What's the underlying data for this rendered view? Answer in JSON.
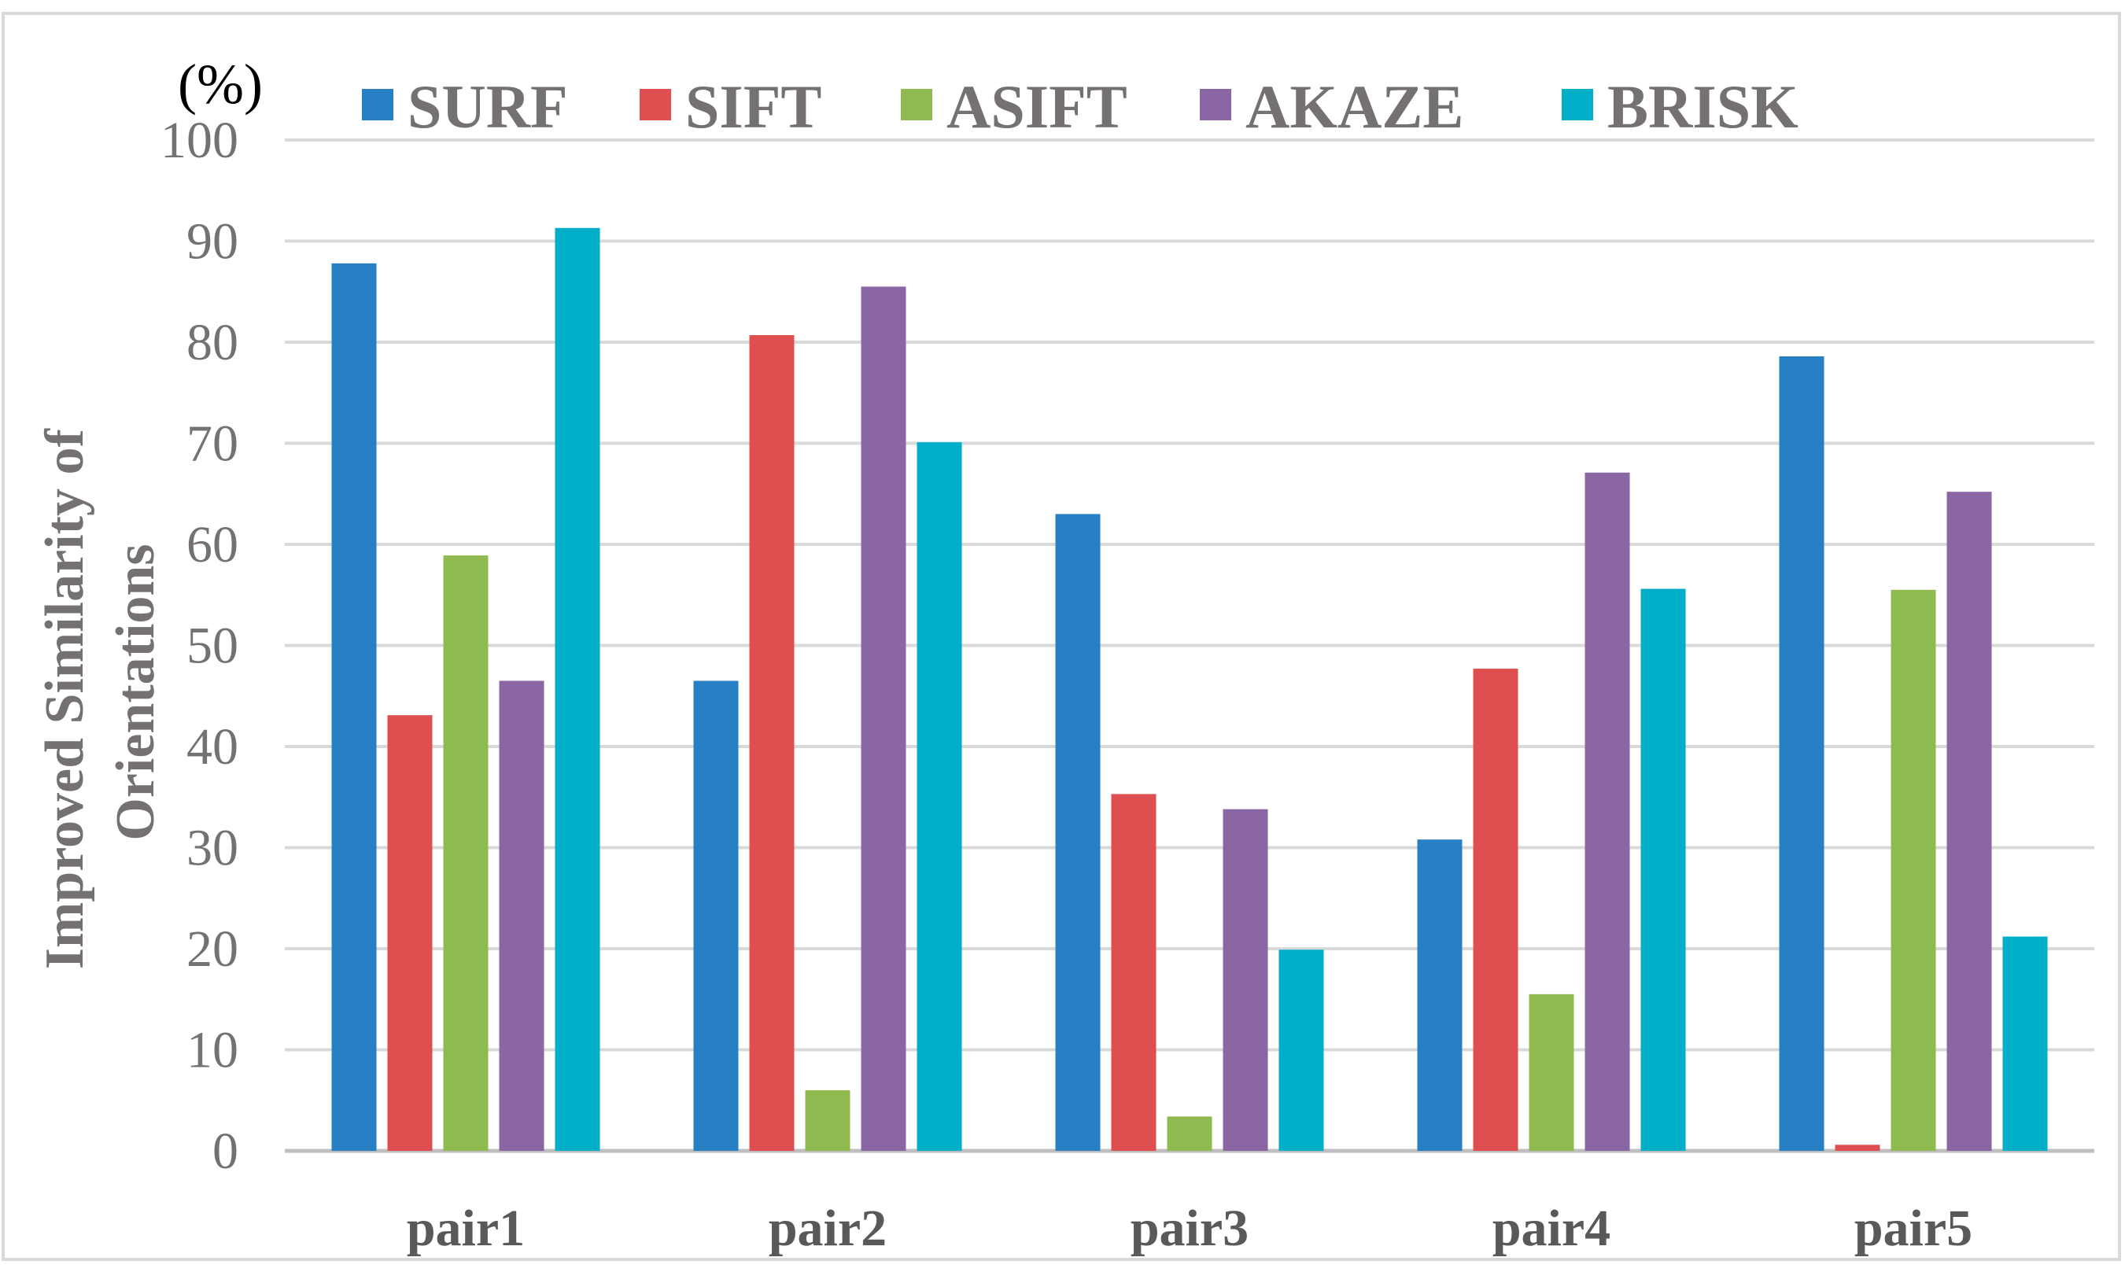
{
  "chart_data": {
    "type": "bar",
    "unit": "(%)",
    "ylabel_lines": [
      "Improved Similarity of",
      "Orientations"
    ],
    "xlabel": "",
    "ylim": [
      0,
      100
    ],
    "yticks": [
      0,
      10,
      20,
      30,
      40,
      50,
      60,
      70,
      80,
      90,
      100
    ],
    "grid": true,
    "legend_position": "top",
    "categories": [
      "pair1",
      "pair2",
      "pair3",
      "pair4",
      "pair5"
    ],
    "series": [
      {
        "name": "SURF",
        "color": "#2780C4",
        "values": [
          87.8,
          46.5,
          63.0,
          30.8,
          78.6
        ]
      },
      {
        "name": "SIFT",
        "color": "#E04F4F",
        "values": [
          43.1,
          80.7,
          35.3,
          47.7,
          0.6
        ]
      },
      {
        "name": "ASIFT",
        "color": "#8FBA4F",
        "values": [
          58.9,
          6.0,
          3.4,
          15.5,
          55.5
        ]
      },
      {
        "name": "AKAZE",
        "color": "#8B66A5",
        "values": [
          46.5,
          85.5,
          33.8,
          67.1,
          65.2
        ]
      },
      {
        "name": "BRISK",
        "color": "#00AFC7",
        "values": [
          91.3,
          70.1,
          19.9,
          55.6,
          21.2
        ]
      }
    ]
  }
}
